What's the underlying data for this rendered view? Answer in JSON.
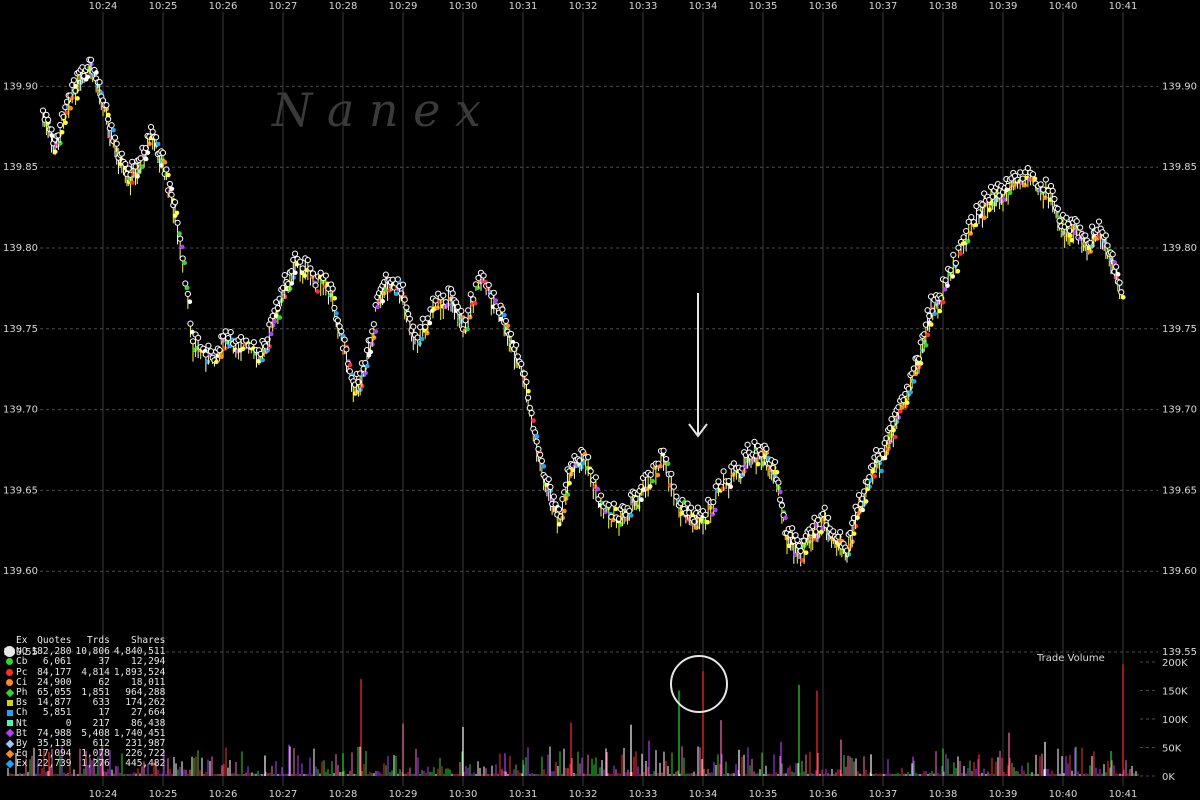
{
  "chart_data": [
    {
      "type": "scatter",
      "title": "",
      "watermark": "N a n e x",
      "x_time_ticks": [
        "10:24",
        "10:25",
        "10:26",
        "10:27",
        "10:28",
        "10:29",
        "10:30",
        "10:31",
        "10:32",
        "10:33",
        "10:34",
        "10:35",
        "10:36",
        "10:37",
        "10:38",
        "10:39",
        "10:40",
        "10:41"
      ],
      "y_ticks": [
        "139.90",
        "139.85",
        "139.80",
        "139.75",
        "139.70",
        "139.65",
        "139.60",
        "139.55"
      ],
      "ylim": [
        139.55,
        139.92
      ],
      "price_path": {
        "x": [
          "10:23.0",
          "10:23.2",
          "10:23.4",
          "10:23.6",
          "10:23.8",
          "10:24.0",
          "10:24.2",
          "10:24.4",
          "10:24.6",
          "10:24.8",
          "10:25.0",
          "10:25.2",
          "10:25.5",
          "10:25.8",
          "10:26.0",
          "10:26.3",
          "10:26.6",
          "10:26.8",
          "10:27.0",
          "10:27.2",
          "10:27.5",
          "10:27.8",
          "10:28.0",
          "10:28.2",
          "10:28.4",
          "10:28.6",
          "10:28.8",
          "10:29.0",
          "10:29.2",
          "10:29.5",
          "10:29.8",
          "10:30.0",
          "10:30.3",
          "10:30.6",
          "10:30.8",
          "10:31.0",
          "10:31.2",
          "10:31.4",
          "10:31.6",
          "10:31.8",
          "10:32.0",
          "10:32.3",
          "10:32.6",
          "10:32.8",
          "10:33.0",
          "10:33.3",
          "10:33.6",
          "10:33.8",
          "10:34.0",
          "10:34.3",
          "10:34.6",
          "10:34.8",
          "10:35.0",
          "10:35.2",
          "10:35.4",
          "10:35.6",
          "10:35.8",
          "10:36.0",
          "10:36.2",
          "10:36.4",
          "10:36.6",
          "10:36.8",
          "10:37.0",
          "10:37.2",
          "10:37.4",
          "10:37.6",
          "10:37.8",
          "10:38.0",
          "10:38.3",
          "10:38.6",
          "10:38.8",
          "10:39.0",
          "10:39.2",
          "10:39.5",
          "10:39.8",
          "10:40.0",
          "10:40.2",
          "10:40.4",
          "10:40.6",
          "10:40.8",
          "10:41.0"
        ],
        "y": [
          139.88,
          139.86,
          139.89,
          139.9,
          139.91,
          139.89,
          139.86,
          139.84,
          139.85,
          139.87,
          139.85,
          139.82,
          139.74,
          139.73,
          139.74,
          139.74,
          139.73,
          139.75,
          139.77,
          139.79,
          139.78,
          139.77,
          139.74,
          139.71,
          139.73,
          139.77,
          139.78,
          139.77,
          139.74,
          139.76,
          139.77,
          139.75,
          139.78,
          139.76,
          139.74,
          139.72,
          139.68,
          139.65,
          139.63,
          139.66,
          139.67,
          139.64,
          139.63,
          139.64,
          139.65,
          139.67,
          139.64,
          139.63,
          139.63,
          139.65,
          139.66,
          139.67,
          139.67,
          139.66,
          139.62,
          139.61,
          139.62,
          139.63,
          139.62,
          139.61,
          139.64,
          139.66,
          139.67,
          139.69,
          139.71,
          139.73,
          139.76,
          139.77,
          139.8,
          139.82,
          139.83,
          139.83,
          139.84,
          139.84,
          139.83,
          139.81,
          139.81,
          139.8,
          139.81,
          139.79,
          139.77
        ]
      },
      "annotations": [
        "down-arrow at 10:34 above 139.67",
        "circle on volume spike at 10:34"
      ]
    },
    {
      "type": "bar",
      "title": "Trade Volume",
      "y_ticks": [
        "200K",
        "150K",
        "100K",
        "50K",
        "0K"
      ],
      "ylim": [
        0,
        200000
      ],
      "spikes": {
        "x": [
          "10:23.1",
          "10:24.0",
          "10:26.7",
          "10:27.1",
          "10:28.0",
          "10:28.3",
          "10:29.0",
          "10:30.0",
          "10:30.7",
          "10:31.0",
          "10:31.8",
          "10:32.4",
          "10:32.8",
          "10:33.1",
          "10:33.6",
          "10:34.0",
          "10:34.3",
          "10:34.6",
          "10:35.3",
          "10:35.6",
          "10:35.9",
          "10:36.3",
          "10:36.8",
          "10:37.5",
          "10:38.0",
          "10:38.6",
          "10:39.1",
          "10:39.7",
          "10:40.2",
          "10:40.8",
          "10:41.0"
        ],
        "y": [
          42000,
          30000,
          36000,
          55000,
          40000,
          170000,
          92000,
          86000,
          40000,
          28000,
          94000,
          42000,
          90000,
          62000,
          150000,
          184000,
          98000,
          46000,
          60000,
          160000,
          150000,
          64000,
          38000,
          34000,
          48000,
          38000,
          76000,
          60000,
          50000,
          44000,
          196000
        ]
      },
      "colors": [
        "#ff2b2b",
        "#ff6fb0",
        "#ffffff",
        "#b040ff",
        "#2bd82b"
      ]
    }
  ],
  "legend": {
    "headers": [
      "Ex",
      "Quotes",
      "Trds",
      "Shares"
    ],
    "rows": [
      {
        "code": "NQ",
        "quotes": "182,280",
        "trds": "10,806",
        "shares": "4,840,511",
        "color": "#e8e8e8",
        "shape": "big"
      },
      {
        "code": "Cb",
        "quotes": "6,061",
        "trds": "37",
        "shares": "12,294",
        "color": "#2bd82b",
        "shape": "circle"
      },
      {
        "code": "Pc",
        "quotes": "84,177",
        "trds": "4,814",
        "shares": "1,893,524",
        "color": "#ff2b2b",
        "shape": "circle"
      },
      {
        "code": "Ci",
        "quotes": "24,900",
        "trds": "62",
        "shares": "18,011",
        "color": "#ff8c1a",
        "shape": "circle"
      },
      {
        "code": "Ph",
        "quotes": "65,055",
        "trds": "1,851",
        "shares": "964,288",
        "color": "#2bd82b",
        "shape": "diamond"
      },
      {
        "code": "Bs",
        "quotes": "14,877",
        "trds": "633",
        "shares": "174,262",
        "color": "#d4d400",
        "shape": "square"
      },
      {
        "code": "Ch",
        "quotes": "5,851",
        "trds": "17",
        "shares": "27,664",
        "color": "#1aa6ff",
        "shape": "square"
      },
      {
        "code": "Nt",
        "quotes": "0",
        "trds": "217",
        "shares": "86,438",
        "color": "#40ffb0",
        "shape": "square"
      },
      {
        "code": "Bt",
        "quotes": "74,988",
        "trds": "5,408",
        "shares": "1,740,451",
        "color": "#b040ff",
        "shape": "diamond"
      },
      {
        "code": "By",
        "quotes": "35,138",
        "trds": "612",
        "shares": "231,987",
        "color": "#a0c8ff",
        "shape": "diamond"
      },
      {
        "code": "Eq",
        "quotes": "17,094",
        "trds": "1,078",
        "shares": "226,722",
        "color": "#ff8c1a",
        "shape": "diamond"
      },
      {
        "code": "Ex",
        "quotes": "22,739",
        "trds": "1,276",
        "shares": "445,482",
        "color": "#1aa6ff",
        "shape": "diamond"
      }
    ]
  }
}
